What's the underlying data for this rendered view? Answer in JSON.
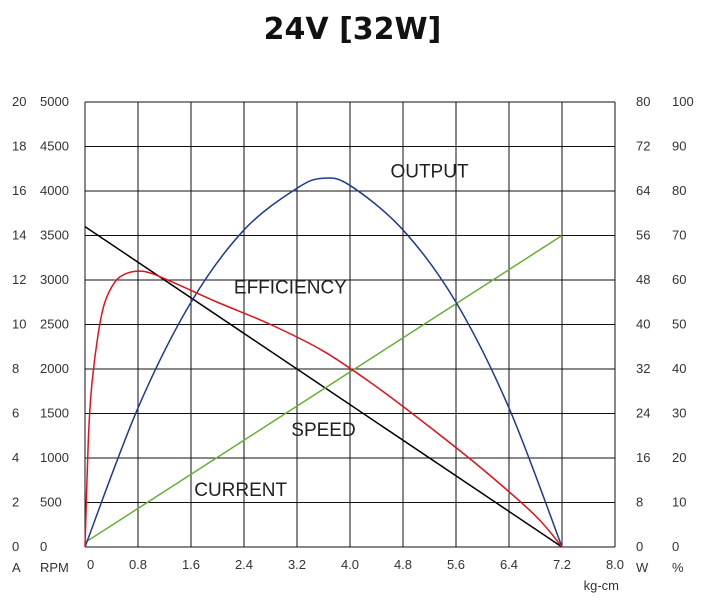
{
  "chart_data": {
    "type": "line",
    "title": "24V [32W]",
    "x_axis": {
      "label": "kg-cm",
      "min": 0,
      "max": 8.0,
      "ticks": [
        "0",
        "0.8",
        "1.6",
        "2.4",
        "3.2",
        "4.0",
        "4.8",
        "5.6",
        "6.4",
        "7.2",
        "8.0"
      ]
    },
    "left_axes": [
      {
        "unit": "A",
        "min": 0,
        "max": 20,
        "ticks": [
          "0",
          "2",
          "4",
          "6",
          "8",
          "10",
          "12",
          "14",
          "16",
          "18",
          "20"
        ]
      },
      {
        "unit": "RPM",
        "min": 0,
        "max": 5000,
        "ticks": [
          "0",
          "500",
          "1000",
          "1500",
          "2000",
          "2500",
          "3000",
          "3500",
          "4000",
          "4500",
          "5000"
        ]
      }
    ],
    "right_axes": [
      {
        "unit": "W",
        "min": 0,
        "max": 80,
        "ticks": [
          "0",
          "8",
          "16",
          "24",
          "32",
          "40",
          "48",
          "56",
          "64",
          "72",
          "80"
        ]
      },
      {
        "unit": "%",
        "min": 0,
        "max": 100,
        "ticks": [
          "0",
          "10",
          "20",
          "30",
          "40",
          "50",
          "60",
          "70",
          "80",
          "90",
          "100"
        ]
      }
    ],
    "grid": true,
    "series": [
      {
        "name": "SPEED",
        "axis": "RPM",
        "color": "#000000",
        "x": [
          0,
          7.2
        ],
        "y": [
          3600,
          0
        ]
      },
      {
        "name": "CURRENT",
        "axis": "A",
        "color": "#66b032",
        "x": [
          0,
          7.2
        ],
        "y": [
          0.2,
          14.0
        ]
      },
      {
        "name": "OUTPUT",
        "axis": "W",
        "color": "#1f3a93",
        "x": [
          0,
          0.8,
          1.6,
          2.4,
          3.2,
          3.6,
          4.0,
          4.8,
          5.6,
          6.4,
          7.2
        ],
        "y": [
          0,
          25.0,
          44.0,
          57.0,
          64.5,
          66.3,
          65.0,
          57.0,
          44.0,
          25.0,
          0
        ]
      },
      {
        "name": "EFFICIENCY",
        "axis": "%",
        "color": "#e3121a",
        "x": [
          0,
          0.05,
          0.1,
          0.2,
          0.3,
          0.45,
          0.6,
          0.8,
          1.0,
          1.4,
          2.0,
          2.8,
          3.6,
          4.4,
          5.2,
          6.0,
          6.8,
          7.2
        ],
        "y": [
          0,
          24,
          36,
          48,
          55,
          59.5,
          61.3,
          62,
          61.5,
          59,
          55,
          50,
          44,
          36,
          27,
          17.5,
          7,
          0
        ]
      }
    ],
    "curve_labels": [
      {
        "text": "OUTPUT",
        "series": "OUTPUT",
        "x": 5.2,
        "y": 4150,
        "axis": "RPM"
      },
      {
        "text": "EFFICIENCY",
        "series": "EFFICIENCY",
        "x": 3.1,
        "y": 2850,
        "axis": "RPM"
      },
      {
        "text": "SPEED",
        "series": "SPEED",
        "x": 3.6,
        "y": 1250,
        "axis": "RPM"
      },
      {
        "text": "CURRENT",
        "series": "CURRENT",
        "x": 2.35,
        "y": 575,
        "axis": "RPM"
      }
    ]
  }
}
